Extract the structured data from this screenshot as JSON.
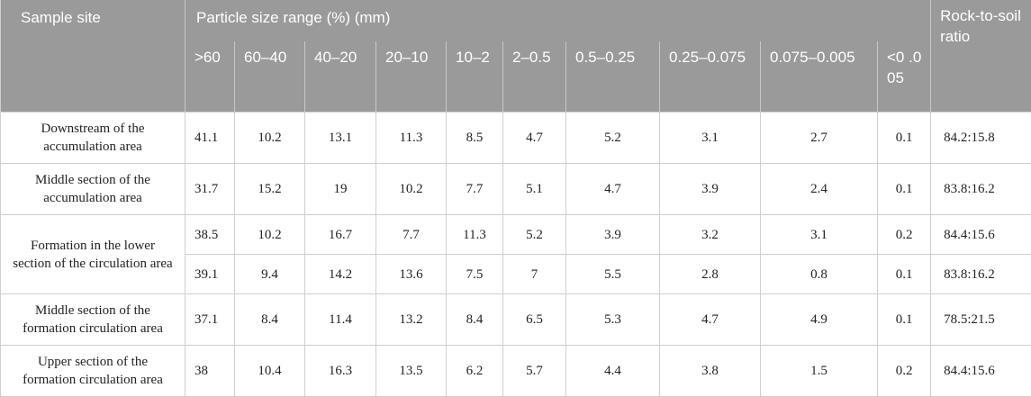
{
  "header": {
    "sample_site": "Sample site",
    "particle_size_range": "Particle size range (%) (mm)",
    "rock_to_soil": "Rock-to-soil ratio",
    "ranges": [
      ">60",
      "60–40",
      "40–20",
      "20–10",
      "10–2",
      "2–0.5",
      "0.5–0.25",
      "0.25–0.075",
      "0.075–0.005",
      "<0 .005"
    ]
  },
  "rows": [
    {
      "site": "Downstream of the accumulation area",
      "values": [
        "41.1",
        "10.2",
        "13.1",
        "11.3",
        "8.5",
        "4.7",
        "5.2",
        "3.1",
        "2.7",
        "0.1"
      ],
      "ratio": "84.2:15.8"
    },
    {
      "site": "Middle section of the accumulation area",
      "values": [
        "31.7",
        "15.2",
        "19",
        "10.2",
        "7.7",
        "5.1",
        "4.7",
        "3.9",
        "2.4",
        "0.1"
      ],
      "ratio": "83.8:16.2"
    },
    {
      "site": "Formation in the lower section of the circulation area",
      "values": [
        "38.5",
        "10.2",
        "16.7",
        "7.7",
        "11.3",
        "5.2",
        "3.9",
        "3.2",
        "3.1",
        "0.2"
      ],
      "ratio": "84.4:15.6"
    },
    {
      "site": "",
      "values": [
        "39.1",
        "9.4",
        "14.2",
        "13.6",
        "7.5",
        "7",
        "5.5",
        "2.8",
        "0.8",
        "0.1"
      ],
      "ratio": "83.8:16.2"
    },
    {
      "site": "Middle section of the formation circulation area",
      "values": [
        "37.1",
        "8.4",
        "11.4",
        "13.2",
        "8.4",
        "6.5",
        "5.3",
        "4.7",
        "4.9",
        "0.1"
      ],
      "ratio": "78.5:21.5"
    },
    {
      "site": "Upper section of the formation circulation area",
      "values": [
        "38",
        "10.4",
        "16.3",
        "13.5",
        "6.2",
        "5.7",
        "4.4",
        "3.8",
        "1.5",
        "0.2"
      ],
      "ratio": "84.4:15.6"
    }
  ]
}
